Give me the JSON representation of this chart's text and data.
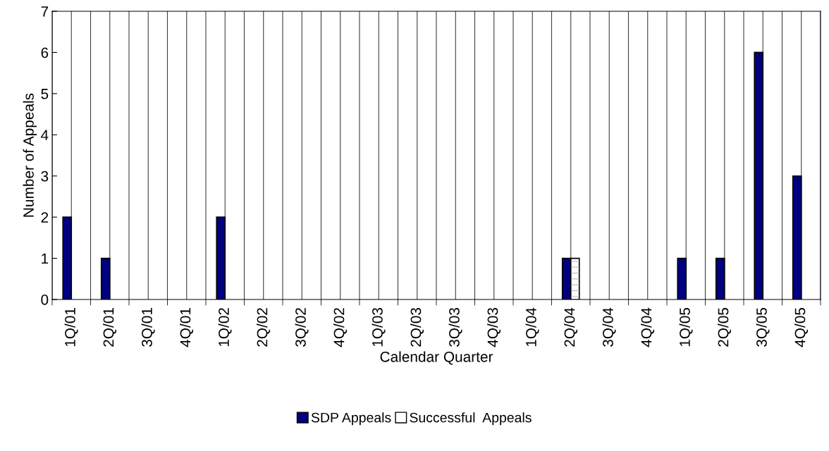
{
  "chart_data": {
    "type": "bar",
    "xlabel": "Calendar Quarter",
    "ylabel": "Number of Appeals",
    "categories": [
      "1Q/01",
      "2Q/01",
      "3Q/01",
      "4Q/01",
      "1Q/02",
      "2Q/02",
      "3Q/02",
      "4Q/02",
      "1Q/03",
      "2Q/03",
      "3Q/03",
      "4Q/03",
      "1Q/04",
      "2Q/04",
      "3Q/04",
      "4Q/04",
      "1Q/05",
      "2Q/05",
      "3Q/05",
      "4Q/05"
    ],
    "series": [
      {
        "name": "SDP Appeals",
        "color": "#000080",
        "values": [
          2,
          1,
          0,
          0,
          2,
          0,
          0,
          0,
          0,
          0,
          0,
          0,
          0,
          1,
          0,
          0,
          1,
          1,
          6,
          3
        ]
      },
      {
        "name": "Successful  Appeals",
        "color": "#ffffff",
        "values": [
          0,
          0,
          0,
          0,
          0,
          0,
          0,
          0,
          0,
          0,
          0,
          0,
          0,
          1,
          0,
          0,
          0,
          0,
          0,
          0
        ]
      }
    ],
    "ylim": [
      0,
      7
    ],
    "yticks": [
      0,
      1,
      2,
      3,
      4,
      5,
      6,
      7
    ],
    "grid": "x",
    "legend": "bottom"
  }
}
